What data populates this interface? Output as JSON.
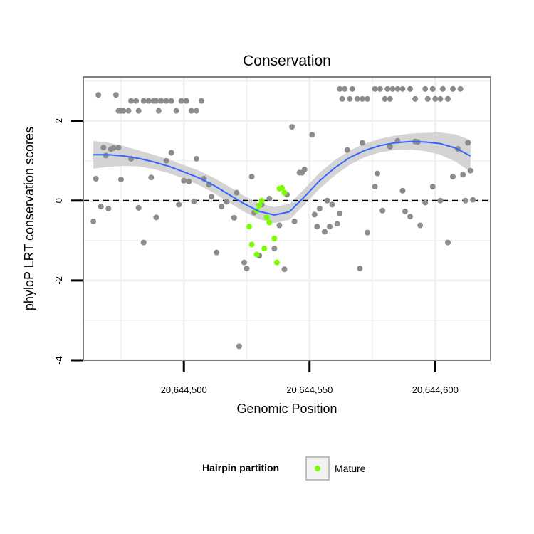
{
  "chart_data": {
    "type": "scatter",
    "title": "Conservation",
    "xlabel": "Genomic Position",
    "ylabel": "phyloP LRT conservation scores",
    "xlim": [
      20644460,
      20644622
    ],
    "ylim": [
      -4,
      3.1
    ],
    "x_ticks": [
      20644500,
      20644550,
      20644600
    ],
    "x_tick_labels": [
      "20,644,500",
      "20,644,550",
      "20,644,600"
    ],
    "y_ticks": [
      -4,
      -2,
      0,
      2
    ],
    "y_tick_labels": [
      "-4",
      "-2",
      "0",
      "2"
    ],
    "grid": true,
    "reference_line": {
      "y": 0,
      "style": "dashed"
    },
    "colors": {
      "other": "#8c8c8c",
      "mature": "#7cfc00",
      "smooth": "#3366ff",
      "ribbon": "#cccccc"
    },
    "legend": {
      "title": "Hairpin partition",
      "placement": "bottom",
      "entries": [
        {
          "label": "Mature",
          "color": "#7cfc00"
        }
      ]
    },
    "series": [
      {
        "name": "",
        "color": "#8c8c8c",
        "points": [
          [
            20644466,
            2.65
          ],
          [
            20644468,
            1.33
          ],
          [
            20644469,
            1.13
          ],
          [
            20644471,
            1.29
          ],
          [
            20644472,
            1.32
          ],
          [
            20644474,
            1.33
          ],
          [
            20644473,
            2.65
          ],
          [
            20644474,
            2.25
          ],
          [
            20644475,
            2.25
          ],
          [
            20644476,
            2.25
          ],
          [
            20644478,
            2.25
          ],
          [
            20644479,
            2.5
          ],
          [
            20644481,
            2.5
          ],
          [
            20644482,
            2.25
          ],
          [
            20644484,
            2.5
          ],
          [
            20644486,
            2.5
          ],
          [
            20644488,
            2.5
          ],
          [
            20644489,
            2.5
          ],
          [
            20644490,
            2.25
          ],
          [
            20644491,
            2.5
          ],
          [
            20644493,
            2.5
          ],
          [
            20644495,
            2.5
          ],
          [
            20644497,
            2.25
          ],
          [
            20644499,
            2.5
          ],
          [
            20644501,
            2.5
          ],
          [
            20644503,
            2.25
          ],
          [
            20644505,
            2.25
          ],
          [
            20644507,
            2.5
          ],
          [
            20644465,
            0.55
          ],
          [
            20644464,
            -0.52
          ],
          [
            20644467,
            -0.15
          ],
          [
            20644470,
            -0.2
          ],
          [
            20644475,
            0.53
          ],
          [
            20644479,
            1.05
          ],
          [
            20644482,
            -0.18
          ],
          [
            20644484,
            -1.05
          ],
          [
            20644487,
            0.58
          ],
          [
            20644489,
            -0.42
          ],
          [
            20644493,
            1.0
          ],
          [
            20644495,
            1.2
          ],
          [
            20644498,
            -0.1
          ],
          [
            20644500,
            0.5
          ],
          [
            20644502,
            0.48
          ],
          [
            20644504,
            -0.02
          ],
          [
            20644505,
            1.05
          ],
          [
            20644508,
            0.55
          ],
          [
            20644510,
            0.4
          ],
          [
            20644511,
            0.1
          ],
          [
            20644513,
            -1.3
          ],
          [
            20644515,
            -0.15
          ],
          [
            20644517,
            -0.03
          ],
          [
            20644520,
            -0.43
          ],
          [
            20644521,
            0.2
          ],
          [
            20644522,
            -3.65
          ],
          [
            20644524,
            -1.55
          ],
          [
            20644525,
            -1.7
          ],
          [
            20644527,
            0.6
          ],
          [
            20644528,
            -0.3
          ],
          [
            20644530,
            -1.38
          ],
          [
            20644531,
            -0.1
          ],
          [
            20644534,
            0.05
          ],
          [
            20644536,
            -1.2
          ],
          [
            20644538,
            -0.62
          ],
          [
            20644540,
            -1.72
          ],
          [
            20644541,
            0.15
          ],
          [
            20644543,
            1.85
          ],
          [
            20644544,
            -0.52
          ],
          [
            20644546,
            0.7
          ],
          [
            20644547,
            0.7
          ],
          [
            20644548,
            0.78
          ],
          [
            20644551,
            1.65
          ],
          [
            20644552,
            -0.35
          ],
          [
            20644553,
            -0.65
          ],
          [
            20644554,
            -0.2
          ],
          [
            20644556,
            -0.78
          ],
          [
            20644557,
            0.0
          ],
          [
            20644558,
            -0.65
          ],
          [
            20644559,
            -0.1
          ],
          [
            20644561,
            -0.58
          ],
          [
            20644562,
            -0.32
          ],
          [
            20644565,
            1.27
          ],
          [
            20644570,
            -1.7
          ],
          [
            20644571,
            1.45
          ],
          [
            20644573,
            -0.8
          ],
          [
            20644576,
            0.35
          ],
          [
            20644577,
            0.68
          ],
          [
            20644579,
            -0.25
          ],
          [
            20644582,
            1.35
          ],
          [
            20644585,
            1.5
          ],
          [
            20644587,
            0.25
          ],
          [
            20644588,
            -0.27
          ],
          [
            20644590,
            -0.4
          ],
          [
            20644592,
            1.48
          ],
          [
            20644593,
            1.47
          ],
          [
            20644594,
            -0.62
          ],
          [
            20644596,
            -0.05
          ],
          [
            20644599,
            0.35
          ],
          [
            20644602,
            0.0
          ],
          [
            20644605,
            -1.05
          ],
          [
            20644607,
            0.6
          ],
          [
            20644609,
            1.3
          ],
          [
            20644611,
            0.65
          ],
          [
            20644612,
            0.0
          ],
          [
            20644613,
            1.45
          ],
          [
            20644614,
            0.75
          ],
          [
            20644615,
            0.02
          ],
          [
            20644562,
            2.8
          ],
          [
            20644564,
            2.8
          ],
          [
            20644567,
            2.8
          ],
          [
            20644563,
            2.55
          ],
          [
            20644566,
            2.55
          ],
          [
            20644569,
            2.55
          ],
          [
            20644571,
            2.55
          ],
          [
            20644573,
            2.55
          ],
          [
            20644576,
            2.8
          ],
          [
            20644578,
            2.8
          ],
          [
            20644581,
            2.8
          ],
          [
            20644583,
            2.8
          ],
          [
            20644580,
            2.55
          ],
          [
            20644582,
            2.55
          ],
          [
            20644585,
            2.8
          ],
          [
            20644587,
            2.8
          ],
          [
            20644590,
            2.8
          ],
          [
            20644592,
            2.55
          ],
          [
            20644596,
            2.8
          ],
          [
            20644599,
            2.8
          ],
          [
            20644597,
            2.55
          ],
          [
            20644600,
            2.55
          ],
          [
            20644603,
            2.8
          ],
          [
            20644602,
            2.55
          ],
          [
            20644605,
            2.55
          ],
          [
            20644607,
            2.8
          ],
          [
            20644610,
            2.8
          ]
        ]
      },
      {
        "name": "Mature",
        "color": "#7cfc00",
        "points": [
          [
            20644526,
            -0.65
          ],
          [
            20644527,
            -1.1
          ],
          [
            20644529,
            -1.35
          ],
          [
            20644529,
            -0.25
          ],
          [
            20644530,
            -0.12
          ],
          [
            20644531,
            0.0
          ],
          [
            20644532,
            -1.2
          ],
          [
            20644533,
            -0.42
          ],
          [
            20644534,
            -0.55
          ],
          [
            20644536,
            -0.95
          ],
          [
            20644537,
            -1.55
          ],
          [
            20644538,
            0.3
          ],
          [
            20644539,
            0.32
          ],
          [
            20644540,
            0.2
          ]
        ]
      }
    ],
    "smooth": {
      "x": [
        20644464,
        20644470,
        20644476,
        20644482,
        20644488,
        20644494,
        20644500,
        20644506,
        20644512,
        20644518,
        20644524,
        20644530,
        20644536,
        20644542,
        20644548,
        20644554,
        20644560,
        20644566,
        20644572,
        20644578,
        20644584,
        20644590,
        20644596,
        20644602,
        20644608,
        20644614
      ],
      "y": [
        1.15,
        1.15,
        1.12,
        1.06,
        0.97,
        0.86,
        0.72,
        0.57,
        0.38,
        0.15,
        -0.08,
        -0.27,
        -0.36,
        -0.28,
        0.1,
        0.5,
        0.82,
        1.08,
        1.26,
        1.38,
        1.45,
        1.48,
        1.47,
        1.43,
        1.32,
        1.12
      ],
      "se": [
        0.35,
        0.3,
        0.25,
        0.2,
        0.18,
        0.17,
        0.17,
        0.18,
        0.19,
        0.2,
        0.2,
        0.2,
        0.2,
        0.2,
        0.2,
        0.2,
        0.19,
        0.18,
        0.17,
        0.17,
        0.18,
        0.2,
        0.23,
        0.28,
        0.34,
        0.4
      ]
    }
  }
}
